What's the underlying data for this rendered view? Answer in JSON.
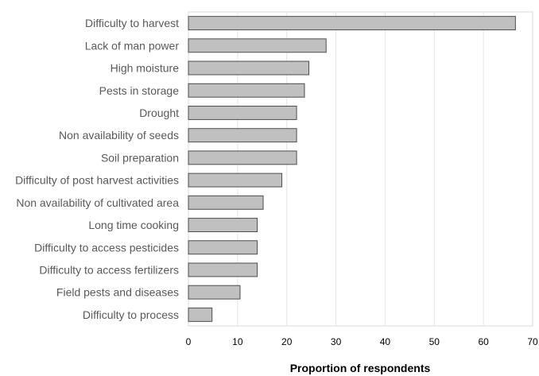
{
  "chart_data": {
    "type": "bar",
    "orientation": "horizontal",
    "categories": [
      "Difficulty to harvest",
      "Lack of man power",
      "High moisture",
      "Pests in storage",
      "Drought",
      "Non availability of seeds",
      "Soil preparation",
      "Difficulty of post harvest activities",
      "Non availability of cultivated area",
      "Long time cooking",
      "Difficulty to access pesticides",
      "Difficulty to access fertilizers",
      "Field pests and diseases",
      "Difficulty to process"
    ],
    "values": [
      66.5,
      28,
      24.5,
      23.6,
      22,
      22,
      22,
      19,
      15.2,
      14,
      14,
      14,
      10.5,
      4.8
    ],
    "xlabel": "Proportion of respondents",
    "ylabel": "",
    "xlim": [
      0,
      70
    ],
    "xticks": [
      "0",
      "10",
      "20",
      "30",
      "40",
      "50",
      "60",
      "70"
    ],
    "grid": "vertical",
    "legend": "none",
    "colors": {
      "bar_fill": "#c0c0c0",
      "bar_stroke": "#4d4d4d",
      "grid": "#e4e4e4",
      "frame": "#d9d9d9"
    }
  }
}
